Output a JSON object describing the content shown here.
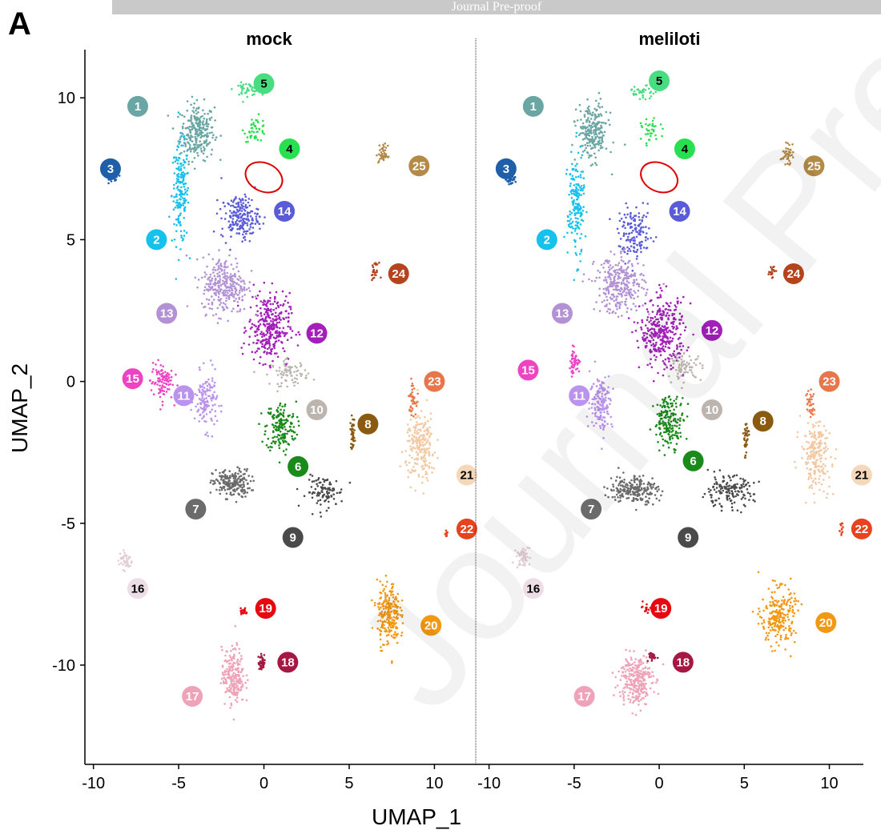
{
  "banner": "Journal Pre-proof",
  "panel_letter": "A",
  "watermark": "Journal Pre-proof",
  "chart_data": {
    "type": "scatter",
    "xlabel": "UMAP_1",
    "ylabel": "UMAP_2",
    "xlim": [
      -10.5,
      12
    ],
    "ylim": [
      -13.5,
      11.7
    ],
    "xticks": [
      -10,
      -5,
      0,
      5,
      10
    ],
    "yticks": [
      10,
      5,
      0,
      -5,
      -10
    ],
    "panels": [
      "mock",
      "meliloti"
    ],
    "clusters": [
      {
        "id": "1",
        "color": "#6aa6a4",
        "mock": {
          "center": [
            -3.9,
            8.8
          ],
          "spread": [
            0.9,
            0.9
          ],
          "n": 260
        },
        "meliloti": {
          "center": [
            -3.9,
            8.8
          ],
          "spread": [
            0.8,
            0.9
          ],
          "n": 230
        },
        "labels": {
          "mock": [
            -7.4,
            9.7
          ],
          "meliloti": [
            -7.4,
            9.7
          ]
        }
      },
      {
        "id": "2",
        "color": "#16c1ec",
        "mock": {
          "center": [
            -4.9,
            6.6
          ],
          "spread": [
            0.45,
            1.6
          ],
          "n": 180
        },
        "meliloti": {
          "center": [
            -4.9,
            6.2
          ],
          "spread": [
            0.45,
            1.7
          ],
          "n": 180
        },
        "labels": {
          "mock": [
            -6.3,
            5.0
          ],
          "meliloti": [
            -6.6,
            5.0
          ]
        }
      },
      {
        "id": "3",
        "color": "#1f5ea8",
        "mock": {
          "center": [
            -8.8,
            7.2
          ],
          "spread": [
            0.25,
            0.15
          ],
          "n": 30
        },
        "meliloti": {
          "center": [
            -8.7,
            7.1
          ],
          "spread": [
            0.25,
            0.15
          ],
          "n": 30
        },
        "labels": {
          "mock": [
            -9.0,
            7.5
          ],
          "meliloti": [
            -9.0,
            7.5
          ]
        }
      },
      {
        "id": "4",
        "color": "#27e04f",
        "mock": {
          "center": [
            -0.5,
            8.9
          ],
          "spread": [
            0.6,
            0.4
          ],
          "n": 45
        },
        "meliloti": {
          "center": [
            -0.5,
            8.8
          ],
          "spread": [
            0.5,
            0.4
          ],
          "n": 35
        },
        "labels": {
          "mock": [
            1.5,
            8.2
          ],
          "meliloti": [
            1.5,
            8.2
          ]
        }
      },
      {
        "id": "5",
        "color": "#49dd82",
        "mock": {
          "center": [
            -1.0,
            10.3
          ],
          "spread": [
            0.7,
            0.2
          ],
          "n": 40
        },
        "meliloti": {
          "center": [
            -1.0,
            10.2
          ],
          "spread": [
            0.7,
            0.2
          ],
          "n": 35
        },
        "labels": {
          "mock": [
            0.0,
            10.5
          ],
          "meliloti": [
            0.0,
            10.6
          ]
        }
      },
      {
        "id": "6",
        "color": "#1a8a1a",
        "mock": {
          "center": [
            1.0,
            -1.6
          ],
          "spread": [
            0.8,
            0.8
          ],
          "n": 180
        },
        "meliloti": {
          "center": [
            0.6,
            -1.4
          ],
          "spread": [
            0.8,
            0.8
          ],
          "n": 180
        },
        "labels": {
          "mock": [
            2.0,
            -3.0
          ],
          "meliloti": [
            2.0,
            -2.8
          ]
        }
      },
      {
        "id": "7",
        "color": "#6b6b6b",
        "mock": {
          "center": [
            -1.9,
            -3.6
          ],
          "spread": [
            1.0,
            0.45
          ],
          "n": 200
        },
        "meliloti": {
          "center": [
            -1.5,
            -3.8
          ],
          "spread": [
            1.3,
            0.45
          ],
          "n": 220
        },
        "labels": {
          "mock": [
            -4.0,
            -4.5
          ],
          "meliloti": [
            -4.0,
            -4.5
          ]
        }
      },
      {
        "id": "8",
        "color": "#8a5a10",
        "mock": {
          "center": [
            5.2,
            -1.8
          ],
          "spread": [
            0.12,
            0.5
          ],
          "n": 40
        },
        "meliloti": {
          "center": [
            5.1,
            -2.0
          ],
          "spread": [
            0.15,
            0.6
          ],
          "n": 40
        },
        "labels": {
          "mock": [
            6.1,
            -1.5
          ],
          "meliloti": [
            6.1,
            -1.4
          ]
        }
      },
      {
        "id": "9",
        "color": "#4a4a4a",
        "mock": {
          "center": [
            3.6,
            -3.9
          ],
          "spread": [
            1.0,
            0.5
          ],
          "n": 100
        },
        "meliloti": {
          "center": [
            4.0,
            -3.9
          ],
          "spread": [
            1.4,
            0.5
          ],
          "n": 160
        },
        "labels": {
          "mock": [
            1.7,
            -5.5
          ],
          "meliloti": [
            1.7,
            -5.5
          ]
        }
      },
      {
        "id": "10",
        "color": "#bcb4ae",
        "mock": {
          "center": [
            1.5,
            0.3
          ],
          "spread": [
            1.0,
            0.4
          ],
          "n": 80
        },
        "meliloti": {
          "center": [
            1.5,
            0.5
          ],
          "spread": [
            0.9,
            0.4
          ],
          "n": 80
        },
        "labels": {
          "mock": [
            3.1,
            -1.0
          ],
          "meliloti": [
            3.1,
            -1.0
          ]
        }
      },
      {
        "id": "11",
        "color": "#bb93ee",
        "mock": {
          "center": [
            -3.4,
            -0.7
          ],
          "spread": [
            0.6,
            0.9
          ],
          "n": 140
        },
        "meliloti": {
          "center": [
            -3.4,
            -0.7
          ],
          "spread": [
            0.6,
            0.9
          ],
          "n": 150
        },
        "labels": {
          "mock": [
            -4.7,
            -0.5
          ],
          "meliloti": [
            -4.7,
            -0.5
          ]
        }
      },
      {
        "id": "12",
        "color": "#a21fb8",
        "mock": {
          "center": [
            0.3,
            1.9
          ],
          "spread": [
            1.1,
            1.1
          ],
          "n": 320
        },
        "meliloti": {
          "center": [
            0.2,
            1.7
          ],
          "spread": [
            1.2,
            1.1
          ],
          "n": 340
        },
        "labels": {
          "mock": [
            3.1,
            1.7
          ],
          "meliloti": [
            3.1,
            1.8
          ]
        }
      },
      {
        "id": "13",
        "color": "#b292d4",
        "mock": {
          "center": [
            -2.3,
            3.4
          ],
          "spread": [
            1.2,
            0.9
          ],
          "n": 300
        },
        "meliloti": {
          "center": [
            -2.3,
            3.4
          ],
          "spread": [
            1.3,
            0.9
          ],
          "n": 300
        },
        "labels": {
          "mock": [
            -5.7,
            2.4
          ],
          "meliloti": [
            -5.7,
            2.4
          ]
        }
      },
      {
        "id": "14",
        "color": "#5a5bd8",
        "mock": {
          "center": [
            -1.4,
            5.8
          ],
          "spread": [
            1.0,
            0.7
          ],
          "n": 200
        },
        "meliloti": {
          "center": [
            -1.4,
            5.2
          ],
          "spread": [
            0.9,
            0.8
          ],
          "n": 140
        },
        "labels": {
          "mock": [
            1.2,
            6.0
          ],
          "meliloti": [
            1.2,
            6.0
          ]
        }
      },
      {
        "id": "15",
        "color": "#ee43c3",
        "mock": {
          "center": [
            -6.0,
            0.0
          ],
          "spread": [
            0.6,
            0.6
          ],
          "n": 100
        },
        "meliloti": {
          "center": [
            -5.0,
            0.7
          ],
          "spread": [
            0.3,
            0.4
          ],
          "n": 45
        },
        "labels": {
          "mock": [
            -7.7,
            0.1
          ],
          "meliloti": [
            -7.7,
            0.4
          ]
        }
      },
      {
        "id": "16",
        "color": "#e3ccd7",
        "mock": {
          "center": [
            -8.1,
            -6.3
          ],
          "spread": [
            0.35,
            0.3
          ],
          "n": 40
        },
        "meliloti": {
          "center": [
            -8.0,
            -6.2
          ],
          "spread": [
            0.35,
            0.35
          ],
          "n": 50
        },
        "labels": {
          "mock": [
            -7.4,
            -7.3
          ],
          "meliloti": [
            -7.4,
            -7.3
          ]
        }
      },
      {
        "id": "17",
        "color": "#eea3b8",
        "mock": {
          "center": [
            -1.8,
            -10.4
          ],
          "spread": [
            0.6,
            0.9
          ],
          "n": 220
        },
        "meliloti": {
          "center": [
            -1.4,
            -10.5
          ],
          "spread": [
            0.9,
            0.8
          ],
          "n": 280
        },
        "labels": {
          "mock": [
            -4.2,
            -11.1
          ],
          "meliloti": [
            -4.4,
            -11.1
          ]
        }
      },
      {
        "id": "18",
        "color": "#a51841",
        "mock": {
          "center": [
            -0.1,
            -9.9
          ],
          "spread": [
            0.2,
            0.25
          ],
          "n": 40
        },
        "meliloti": {
          "center": [
            -0.3,
            -9.7
          ],
          "spread": [
            0.3,
            0.2
          ],
          "n": 25
        },
        "labels": {
          "mock": [
            1.4,
            -9.9
          ],
          "meliloti": [
            1.4,
            -9.9
          ]
        }
      },
      {
        "id": "19",
        "color": "#e60a10",
        "mock": {
          "center": [
            -1.2,
            -8.1
          ],
          "spread": [
            0.2,
            0.15
          ],
          "n": 20
        },
        "meliloti": {
          "center": [
            -0.8,
            -8.0
          ],
          "spread": [
            0.2,
            0.15
          ],
          "n": 15
        },
        "labels": {
          "mock": [
            0.1,
            -8.0
          ],
          "meliloti": [
            0.1,
            -8.0
          ]
        }
      },
      {
        "id": "20",
        "color": "#f39813",
        "mock": {
          "center": [
            7.3,
            -8.2
          ],
          "spread": [
            0.6,
            1.0
          ],
          "n": 240
        },
        "meliloti": {
          "center": [
            7.0,
            -8.3
          ],
          "spread": [
            0.9,
            0.9
          ],
          "n": 240
        },
        "labels": {
          "mock": [
            9.8,
            -8.6
          ],
          "meliloti": [
            9.8,
            -8.5
          ]
        }
      },
      {
        "id": "21",
        "color": "#f2c9a2",
        "mock": {
          "center": [
            9.2,
            -2.3
          ],
          "spread": [
            0.8,
            1.1
          ],
          "n": 220
        },
        "meliloti": {
          "center": [
            9.2,
            -2.6
          ],
          "spread": [
            0.8,
            1.1
          ],
          "n": 220
        },
        "labels": {
          "mock": [
            11.9,
            -3.3
          ],
          "meliloti": [
            11.9,
            -3.3
          ]
        }
      },
      {
        "id": "22",
        "color": "#e8431f",
        "mock": {
          "center": [
            10.7,
            -5.3
          ],
          "spread": [
            0.1,
            0.2
          ],
          "n": 12
        },
        "meliloti": {
          "center": [
            10.7,
            -5.2
          ],
          "spread": [
            0.1,
            0.2
          ],
          "n": 12
        },
        "labels": {
          "mock": [
            11.9,
            -5.2
          ],
          "meliloti": [
            11.9,
            -5.2
          ]
        }
      },
      {
        "id": "23",
        "color": "#e8764b",
        "mock": {
          "center": [
            8.7,
            -0.6
          ],
          "spread": [
            0.2,
            0.5
          ],
          "n": 40
        },
        "meliloti": {
          "center": [
            8.9,
            -0.8
          ],
          "spread": [
            0.2,
            0.5
          ],
          "n": 35
        },
        "labels": {
          "mock": [
            10.0,
            0.0
          ],
          "meliloti": [
            10.0,
            0.0
          ]
        }
      },
      {
        "id": "24",
        "color": "#b4431e",
        "mock": {
          "center": [
            6.5,
            3.9
          ],
          "spread": [
            0.2,
            0.25
          ],
          "n": 25
        },
        "meliloti": {
          "center": [
            6.6,
            3.9
          ],
          "spread": [
            0.2,
            0.2
          ],
          "n": 20
        },
        "labels": {
          "mock": [
            7.9,
            3.8
          ],
          "meliloti": [
            7.9,
            3.8
          ]
        }
      },
      {
        "id": "25",
        "color": "#b48a48",
        "mock": {
          "center": [
            7.0,
            8.0
          ],
          "spread": [
            0.25,
            0.3
          ],
          "n": 40
        },
        "meliloti": {
          "center": [
            7.5,
            8.0
          ],
          "spread": [
            0.3,
            0.3
          ],
          "n": 40
        },
        "labels": {
          "mock": [
            9.1,
            7.6
          ],
          "meliloti": [
            9.1,
            7.6
          ]
        }
      }
    ],
    "highlight_outline": {
      "color": "#e00000",
      "center": [
        0.0,
        7.2
      ],
      "spread": [
        1.5,
        0.5
      ]
    }
  }
}
